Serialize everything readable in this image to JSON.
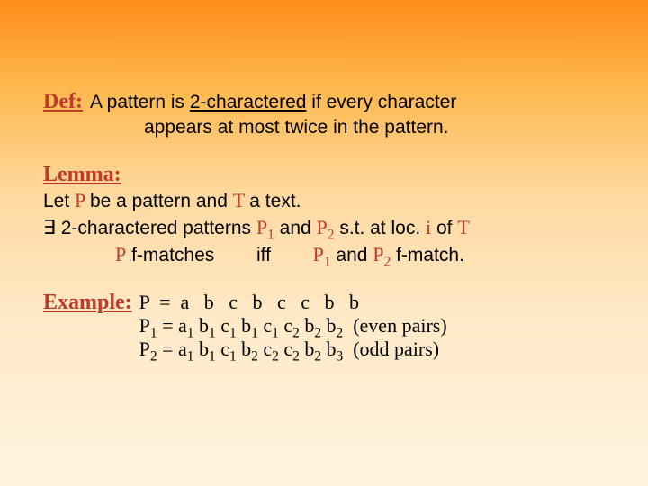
{
  "colors": {
    "heading": "#c0392b",
    "body": "#000000",
    "gradient_top": "#ff8c1a",
    "gradient_bottom": "#fff3e0"
  },
  "fonts": {
    "heading_family": "Comic Sans MS",
    "body_family": "Arial",
    "math_family": "Times New Roman",
    "heading_size_pt": 18,
    "body_size_pt": 16
  },
  "def": {
    "label": "Def:",
    "line1_a": "A pattern is ",
    "line1_b": "2-charactered",
    "line1_c": " if every character",
    "line2": "appears at most twice in the pattern."
  },
  "lemma": {
    "label": "Lemma:",
    "line1_a": "Let ",
    "line1_P": " P ",
    "line1_b": " be a pattern and ",
    "line1_T": " T ",
    "line1_c": " a text.",
    "line2_exists": "∃",
    "line2_a": " 2-charactered patterns ",
    "line2_P1": " P",
    "line2_sub1": "1",
    "line2_and": " and ",
    "line2_P2": " P",
    "line2_sub2": "2",
    "line2_b": " s.t.  at loc. ",
    "line2_i": "i",
    "line2_c": " of ",
    "line2_T": "T",
    "line3_P": "P",
    "line3_a": "  f-matches",
    "line3_iff": "iff",
    "line3_P1": "P",
    "line3_s1": "1",
    "line3_and": " and  ",
    "line3_P2": "P",
    "line3_s2": "2",
    "line3_b": "  f-match."
  },
  "example": {
    "label": "Example:",
    "row_P": "P  =  a   b   c   b   c   c   b   b",
    "row_P1": "P₁ = a₁ b₁ c₁ b₁ c₁ c₂ b₂ b₂  (even pairs)",
    "row_P2": "P₂ = a₁ b₁ c₁ b₂ c₂ c₂ b₂ b₃  (odd pairs)"
  }
}
